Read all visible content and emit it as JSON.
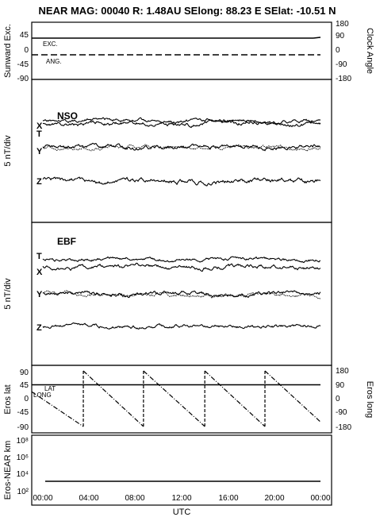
{
  "header": {
    "title": "NEAR MAG: 00040  R: 1.48AU  SElong:   88.23 E  SElat:  -10.51 N"
  },
  "chart_data": [
    {
      "type": "line",
      "panel": "sunward-clock",
      "ylabel": "Sunward Exc.",
      "ylabel_right": "Clock Angle",
      "yticks_left": [
        "45",
        "0",
        "-45",
        "-90"
      ],
      "yticks_right": [
        "180",
        "90",
        "0",
        "-90",
        "-180"
      ],
      "ylim_left": [
        -90,
        90
      ],
      "ylim_right": [
        -180,
        180
      ],
      "series": [
        {
          "name": "EXC.",
          "style": "solid",
          "y_left": 30
        },
        {
          "name": "ANG.",
          "style": "dashed",
          "y_left": -12
        }
      ]
    },
    {
      "type": "line",
      "panel": "nso",
      "label": "NSO",
      "ylabel": "5 nT/div",
      "series": [
        {
          "name": "T",
          "mean": 0
        },
        {
          "name": "X",
          "mean": -2
        },
        {
          "name": "Y",
          "mean": -12
        },
        {
          "name": "Z",
          "mean": -24
        }
      ]
    },
    {
      "type": "line",
      "panel": "ebf",
      "label": "EBF",
      "ylabel": "5 nT/div",
      "series": [
        {
          "name": "T",
          "mean": 0
        },
        {
          "name": "X",
          "mean": -2
        },
        {
          "name": "Y",
          "mean": -12
        },
        {
          "name": "Z",
          "mean": -22
        }
      ]
    },
    {
      "type": "line",
      "panel": "eros-lat-long",
      "ylabel": "Eros lat",
      "ylabel_right": "Eros long",
      "yticks_left": [
        "90",
        "45",
        "0",
        "-45",
        "-90"
      ],
      "yticks_right": [
        "180",
        "90",
        "0",
        "-90",
        "-180"
      ],
      "ylim_left": [
        -90,
        90
      ],
      "ylim_right": [
        -180,
        180
      ],
      "series": [
        {
          "name": "LAT",
          "style": "solid",
          "value": 45
        },
        {
          "name": "LONG",
          "style": "dash-dot",
          "segments": [
            {
              "x": [
                0.0,
                3.5
              ],
              "long": [
                45,
                -180
              ]
            },
            {
              "x": [
                3.5,
                8.7
              ],
              "long": [
                180,
                -180
              ]
            },
            {
              "x": [
                8.7,
                14.0
              ],
              "long": [
                180,
                -180
              ]
            },
            {
              "x": [
                14.0,
                19.2
              ],
              "long": [
                180,
                -180
              ]
            },
            {
              "x": [
                19.2,
                24.0
              ],
              "long": [
                180,
                -150
              ]
            }
          ]
        }
      ]
    },
    {
      "type": "line",
      "panel": "eros-near-distance",
      "ylabel": "Eros-NEAR km",
      "scale": "log",
      "yticks": [
        "10⁸",
        "10⁶",
        "10⁴",
        "10²"
      ],
      "ylim": [
        10,
        100000000
      ],
      "series": [
        {
          "name": "Eros-NEAR",
          "value_km": 3000
        }
      ]
    }
  ],
  "x_axis": {
    "label": "UTC",
    "ticks": [
      "00:00",
      "04:00",
      "08:00",
      "12:00",
      "16:00",
      "20:00",
      "00:00"
    ],
    "range_hours": [
      0,
      24
    ]
  }
}
